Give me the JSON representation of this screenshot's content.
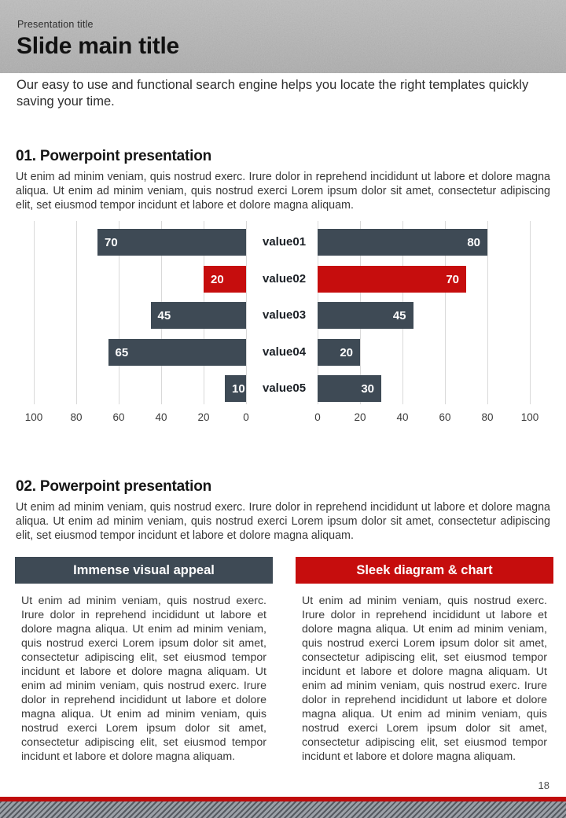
{
  "header": {
    "eyebrow": "Presentation title",
    "title": "Slide main title"
  },
  "intro": "Our easy to use and functional search engine helps you locate the right templates quickly saving your time.",
  "sections": [
    {
      "heading": "01. Powerpoint presentation",
      "body": "Ut enim ad minim veniam, quis nostrud exerc. Irure dolor in reprehend incididunt ut labore et dolore magna aliqua. Ut enim ad minim veniam, quis nostrud exerci  Lorem ipsum dolor sit amet, consectetur adipiscing elit, set eiusmod tempor incidunt et labore et dolore magna aliquam."
    },
    {
      "heading": "02. Powerpoint presentation",
      "body": "Ut enim ad minim veniam, quis nostrud exerc. Irure dolor in reprehend incididunt ut labore et dolore magna aliqua. Ut enim ad minim veniam, quis nostrud exerci  Lorem ipsum dolor sit amet, consectetur adipiscing elit, set eiusmod tempor incidunt et labore et dolore magna aliquam."
    }
  ],
  "chart_data": {
    "type": "bar",
    "variant": "horizontal-butterfly",
    "categories": [
      "value01",
      "value02",
      "value03",
      "value04",
      "value05"
    ],
    "series": [
      {
        "name": "left",
        "values": [
          70,
          20,
          45,
          65,
          10
        ]
      },
      {
        "name": "right",
        "values": [
          80,
          70,
          45,
          20,
          30
        ]
      }
    ],
    "highlight_index": 1,
    "bar_color": "#3e4a55",
    "highlight_color": "#c60d0d",
    "axis_ticks_left": [
      100,
      80,
      60,
      40,
      20,
      0
    ],
    "axis_ticks_right": [
      0,
      20,
      40,
      60,
      80,
      100
    ],
    "xlim": [
      0,
      100
    ],
    "grid": true,
    "value_labels": true,
    "legend": "none",
    "title": ""
  },
  "cards": [
    {
      "title": "Immense visual appeal",
      "accent": "#3e4a55",
      "body": "Ut enim ad minim veniam, quis nostrud exerc. Irure dolor in reprehend incididunt ut labore et dolore magna aliqua. Ut enim ad minim veniam, quis nostrud exerci  Lorem ipsum dolor sit amet, consectetur adipiscing elit, set eiusmod tempor incidunt et labore et dolore magna aliquam. Ut enim ad minim veniam, quis nostrud exerc. Irure dolor in reprehend incididunt ut labore et dolore magna aliqua. Ut enim ad minim veniam, quis nostrud exerci  Lorem ipsum dolor sit amet, consectetur adipiscing elit, set eiusmod tempor incidunt et labore et dolore magna aliquam."
    },
    {
      "title": "Sleek diagram & chart",
      "accent": "#c60d0d",
      "body": "Ut enim ad minim veniam, quis nostrud exerc. Irure dolor in reprehend incididunt ut labore et dolore magna aliqua. Ut enim ad minim veniam, quis nostrud exerci  Lorem ipsum dolor sit amet, consectetur adipiscing elit, set eiusmod tempor incidunt et labore et dolore magna aliquam. Ut enim ad minim veniam, quis nostrud exerc. Irure dolor in reprehend incididunt ut labore et dolore magna aliqua. Ut enim ad minim veniam, quis nostrud exerci  Lorem ipsum dolor sit amet, consectetur adipiscing elit, set eiusmod tempor incidunt et labore et dolore magna aliquam."
    }
  ],
  "footer": {
    "page_number": "18"
  },
  "colors": {
    "header_bg": "#b5b5b5",
    "bar_dark": "#3e4a55",
    "accent_red": "#c60d0d",
    "gridline": "#d9d9d9",
    "footer_line": "#c00b0b",
    "stripe_dark": "#565a61",
    "stripe_light": "#9ba0a7"
  }
}
